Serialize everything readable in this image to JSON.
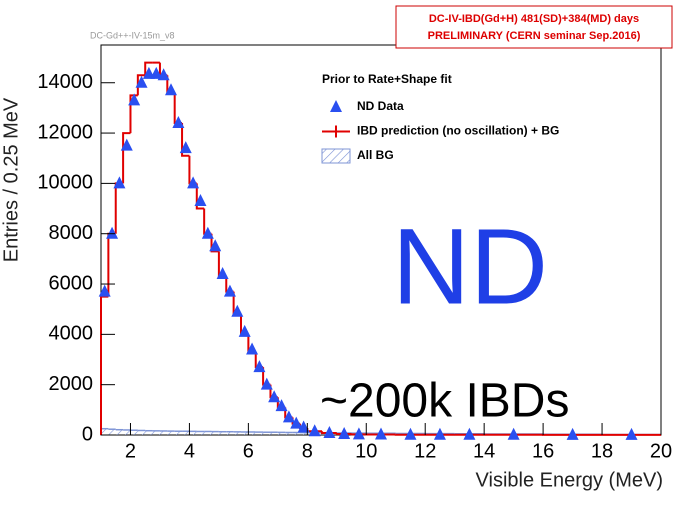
{
  "chart_data": {
    "type": "histogram",
    "header": [
      "DC-IV-IBD(Gd+H)  481(SD)+384(MD) days",
      "PRELIMINARY (CERN seminar Sep.2016)"
    ],
    "tag": "DC-Gd++-IV-15m_v8",
    "legend_title": "Prior to Rate+Shape fit",
    "x_label": "Visible Energy (MeV)",
    "y_label": "Entries / 0.25 MeV",
    "annotations": [
      "ND",
      "~200k IBDs"
    ],
    "bins": [
      1,
      1.25,
      1.5,
      1.75,
      2,
      2.25,
      2.5,
      2.75,
      3,
      3.25,
      3.5,
      3.75,
      4,
      4.25,
      4.5,
      4.75,
      5,
      5.25,
      5.5,
      5.75,
      6,
      6.25,
      6.5,
      6.75,
      7,
      7.25,
      7.5,
      7.75,
      8,
      8.5,
      9,
      9.5,
      10,
      11,
      12,
      13,
      14,
      16,
      18,
      20
    ],
    "series": [
      {
        "name": "ND Data",
        "color": "#2a4ff0",
        "style": "markers",
        "values": [
          5700,
          8000,
          10000,
          11500,
          13300,
          14000,
          14350,
          14350,
          14300,
          13700,
          12400,
          11400,
          10000,
          9300,
          8000,
          7500,
          6400,
          5700,
          4900,
          4100,
          3400,
          2700,
          2000,
          1500,
          1150,
          700,
          450,
          300,
          150,
          80,
          40,
          25,
          20,
          10,
          10,
          10,
          10,
          5,
          5
        ]
      },
      {
        "name": "IBD prediction (no oscillation) + BG",
        "color": "#e00000",
        "style": "step",
        "values": [
          5500,
          8000,
          10000,
          12000,
          13500,
          14300,
          14800,
          14800,
          14300,
          13600,
          12400,
          11100,
          10000,
          9000,
          8000,
          7300,
          6300,
          5700,
          4800,
          4000,
          3300,
          2700,
          2000,
          1500,
          1100,
          700,
          450,
          280,
          150,
          80,
          40,
          25,
          20,
          10,
          10,
          10,
          10,
          5,
          5
        ]
      },
      {
        "name": "All BG",
        "color": "#7f95d6",
        "style": "hatched",
        "values": [
          250,
          230,
          210,
          200,
          190,
          180,
          170,
          165,
          160,
          155,
          150,
          150,
          145,
          140,
          140,
          135,
          130,
          130,
          125,
          120,
          120,
          115,
          110,
          110,
          105,
          100,
          100,
          95,
          90,
          85,
          80,
          75,
          70,
          60,
          55,
          50,
          40,
          30,
          20
        ]
      }
    ],
    "xlim": [
      1,
      20
    ],
    "xticks": [
      2,
      4,
      6,
      8,
      10,
      12,
      14,
      16,
      18,
      20
    ],
    "ylim": [
      0,
      15500
    ],
    "yticks": [
      0,
      2000,
      4000,
      6000,
      8000,
      10000,
      12000,
      14000
    ]
  }
}
